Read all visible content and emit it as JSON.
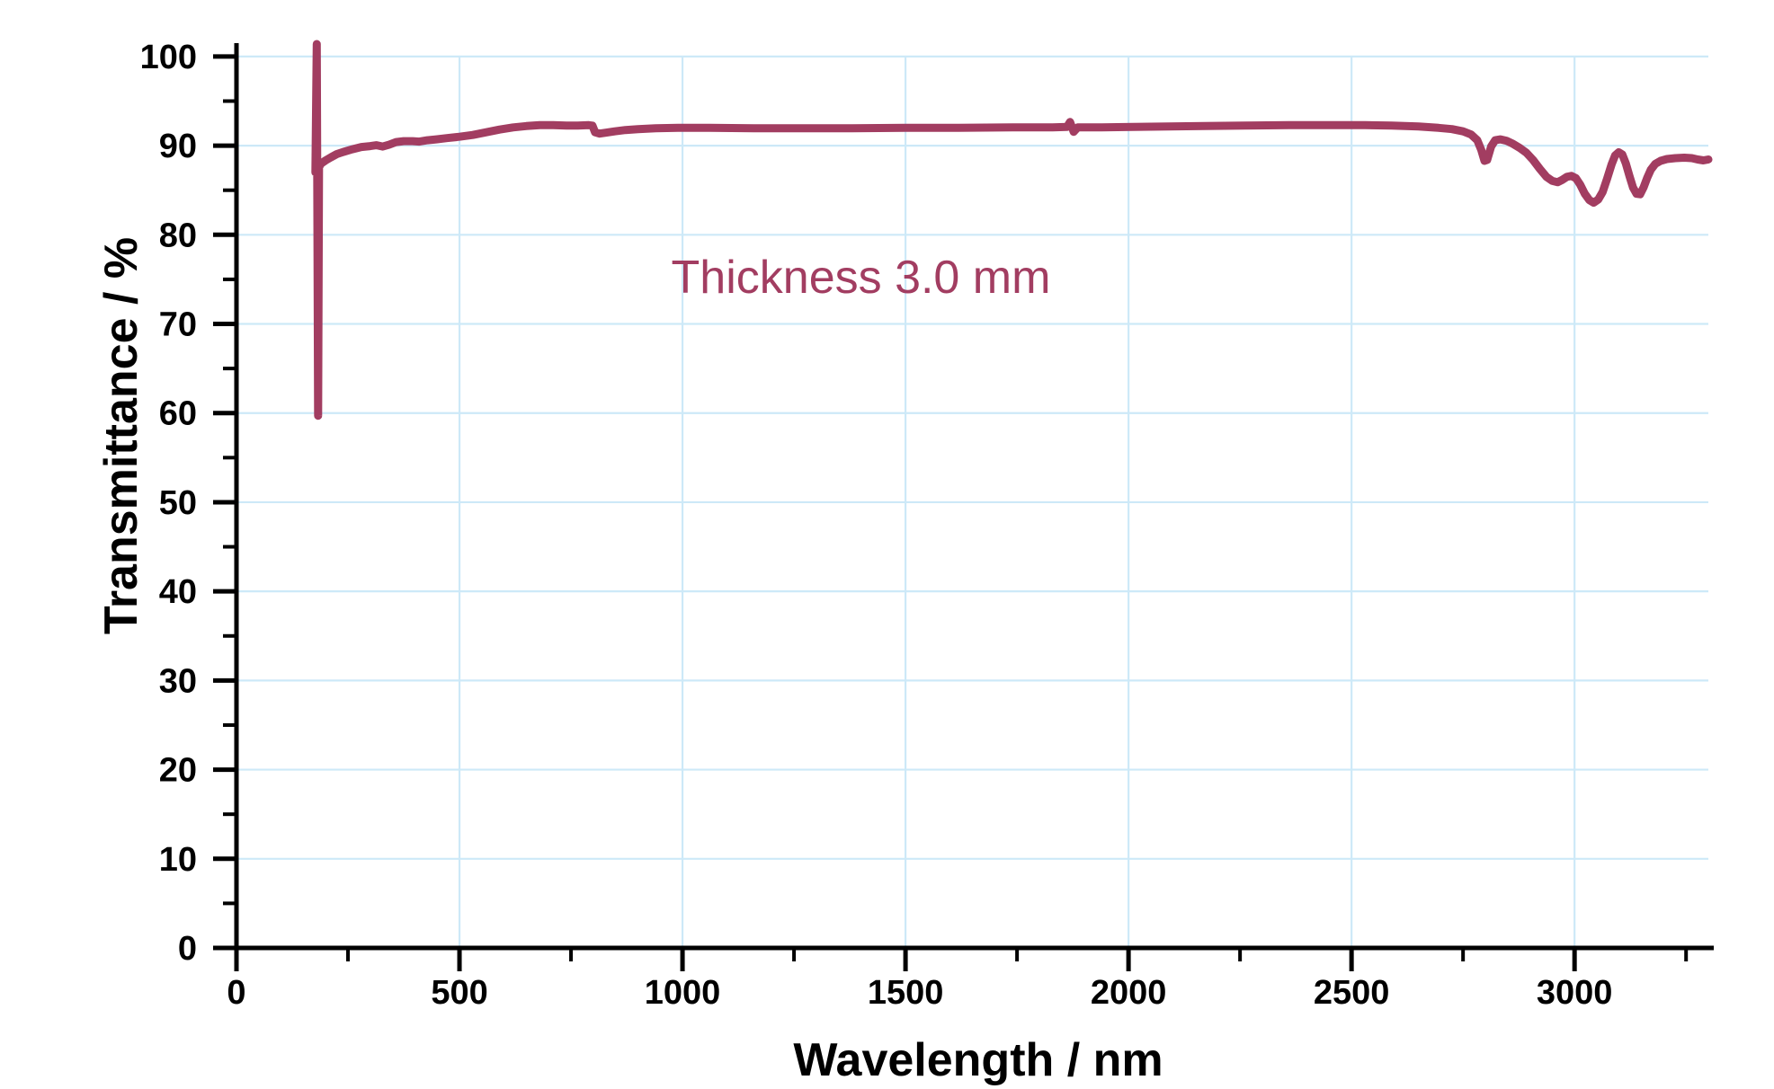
{
  "chart_data": {
    "type": "line",
    "title": "",
    "xlabel": "Wavelength / nm",
    "ylabel": "Transmittance / %",
    "xlim": [
      0,
      3300
    ],
    "ylim": [
      0,
      101.5
    ],
    "x_major_ticks": [
      0,
      500,
      1000,
      1500,
      2000,
      2500,
      3000
    ],
    "x_minor_ticks": [
      250,
      750,
      1250,
      1750,
      2250,
      2750,
      3250
    ],
    "y_major_ticks": [
      0,
      10,
      20,
      30,
      40,
      50,
      60,
      70,
      80,
      90,
      100
    ],
    "y_minor_ticks": [
      5,
      15,
      25,
      35,
      45,
      55,
      65,
      75,
      85,
      95
    ],
    "grid": true,
    "legend": "none",
    "colors": {
      "axis": "#000000",
      "grid": "#cde9f8",
      "curve": "#a23d61",
      "annotation": "#a23d61",
      "background": "#ffffff"
    },
    "annotations": [
      {
        "text": "Thickness 3.0 mm",
        "x": 1400,
        "y": 75.2,
        "color": "#a23d61"
      }
    ],
    "series": [
      {
        "name": "Thickness 3.0 mm",
        "color": "#a23d61",
        "points": [
          [
            177,
            87.0
          ],
          [
            180,
            101.4
          ],
          [
            183,
            59.7
          ],
          [
            185,
            87.6
          ],
          [
            190,
            88.0
          ],
          [
            200,
            88.35
          ],
          [
            212,
            88.7
          ],
          [
            225,
            89.05
          ],
          [
            240,
            89.3
          ],
          [
            260,
            89.6
          ],
          [
            280,
            89.85
          ],
          [
            300,
            89.95
          ],
          [
            314,
            90.05
          ],
          [
            328,
            89.9
          ],
          [
            342,
            90.1
          ],
          [
            358,
            90.4
          ],
          [
            375,
            90.5
          ],
          [
            395,
            90.5
          ],
          [
            410,
            90.45
          ],
          [
            428,
            90.6
          ],
          [
            448,
            90.7
          ],
          [
            472,
            90.85
          ],
          [
            500,
            91.0
          ],
          [
            530,
            91.2
          ],
          [
            560,
            91.5
          ],
          [
            590,
            91.8
          ],
          [
            620,
            92.05
          ],
          [
            650,
            92.2
          ],
          [
            680,
            92.3
          ],
          [
            710,
            92.3
          ],
          [
            740,
            92.25
          ],
          [
            765,
            92.25
          ],
          [
            790,
            92.3
          ],
          [
            798,
            92.25
          ],
          [
            804,
            91.5
          ],
          [
            814,
            91.35
          ],
          [
            828,
            91.45
          ],
          [
            848,
            91.6
          ],
          [
            872,
            91.75
          ],
          [
            900,
            91.85
          ],
          [
            940,
            91.95
          ],
          [
            990,
            92.0
          ],
          [
            1060,
            92.0
          ],
          [
            1160,
            91.95
          ],
          [
            1260,
            91.95
          ],
          [
            1380,
            91.95
          ],
          [
            1500,
            92.0
          ],
          [
            1620,
            92.0
          ],
          [
            1740,
            92.05
          ],
          [
            1830,
            92.05
          ],
          [
            1862,
            92.1
          ],
          [
            1869,
            92.65
          ],
          [
            1877,
            91.55
          ],
          [
            1886,
            92.05
          ],
          [
            1940,
            92.05
          ],
          [
            2010,
            92.1
          ],
          [
            2090,
            92.15
          ],
          [
            2170,
            92.2
          ],
          [
            2260,
            92.25
          ],
          [
            2360,
            92.3
          ],
          [
            2460,
            92.3
          ],
          [
            2530,
            92.3
          ],
          [
            2590,
            92.25
          ],
          [
            2650,
            92.15
          ],
          [
            2695,
            92.0
          ],
          [
            2725,
            91.85
          ],
          [
            2750,
            91.6
          ],
          [
            2768,
            91.25
          ],
          [
            2782,
            90.6
          ],
          [
            2791,
            89.5
          ],
          [
            2798,
            88.3
          ],
          [
            2804,
            88.4
          ],
          [
            2813,
            89.9
          ],
          [
            2822,
            90.6
          ],
          [
            2834,
            90.7
          ],
          [
            2847,
            90.55
          ],
          [
            2862,
            90.2
          ],
          [
            2877,
            89.75
          ],
          [
            2892,
            89.2
          ],
          [
            2907,
            88.4
          ],
          [
            2922,
            87.4
          ],
          [
            2937,
            86.5
          ],
          [
            2950,
            86.05
          ],
          [
            2962,
            85.9
          ],
          [
            2972,
            86.15
          ],
          [
            2983,
            86.5
          ],
          [
            2993,
            86.6
          ],
          [
            3003,
            86.35
          ],
          [
            3013,
            85.6
          ],
          [
            3023,
            84.6
          ],
          [
            3033,
            83.9
          ],
          [
            3043,
            83.6
          ],
          [
            3053,
            83.95
          ],
          [
            3063,
            84.8
          ],
          [
            3073,
            86.3
          ],
          [
            3083,
            87.9
          ],
          [
            3091,
            88.9
          ],
          [
            3099,
            89.25
          ],
          [
            3107,
            89.0
          ],
          [
            3115,
            88.0
          ],
          [
            3123,
            86.6
          ],
          [
            3131,
            85.3
          ],
          [
            3139,
            84.6
          ],
          [
            3147,
            84.55
          ],
          [
            3155,
            85.35
          ],
          [
            3163,
            86.4
          ],
          [
            3171,
            87.3
          ],
          [
            3181,
            87.95
          ],
          [
            3193,
            88.3
          ],
          [
            3207,
            88.5
          ],
          [
            3226,
            88.6
          ],
          [
            3246,
            88.65
          ],
          [
            3263,
            88.6
          ],
          [
            3276,
            88.45
          ],
          [
            3289,
            88.35
          ],
          [
            3300,
            88.45
          ]
        ]
      }
    ]
  }
}
